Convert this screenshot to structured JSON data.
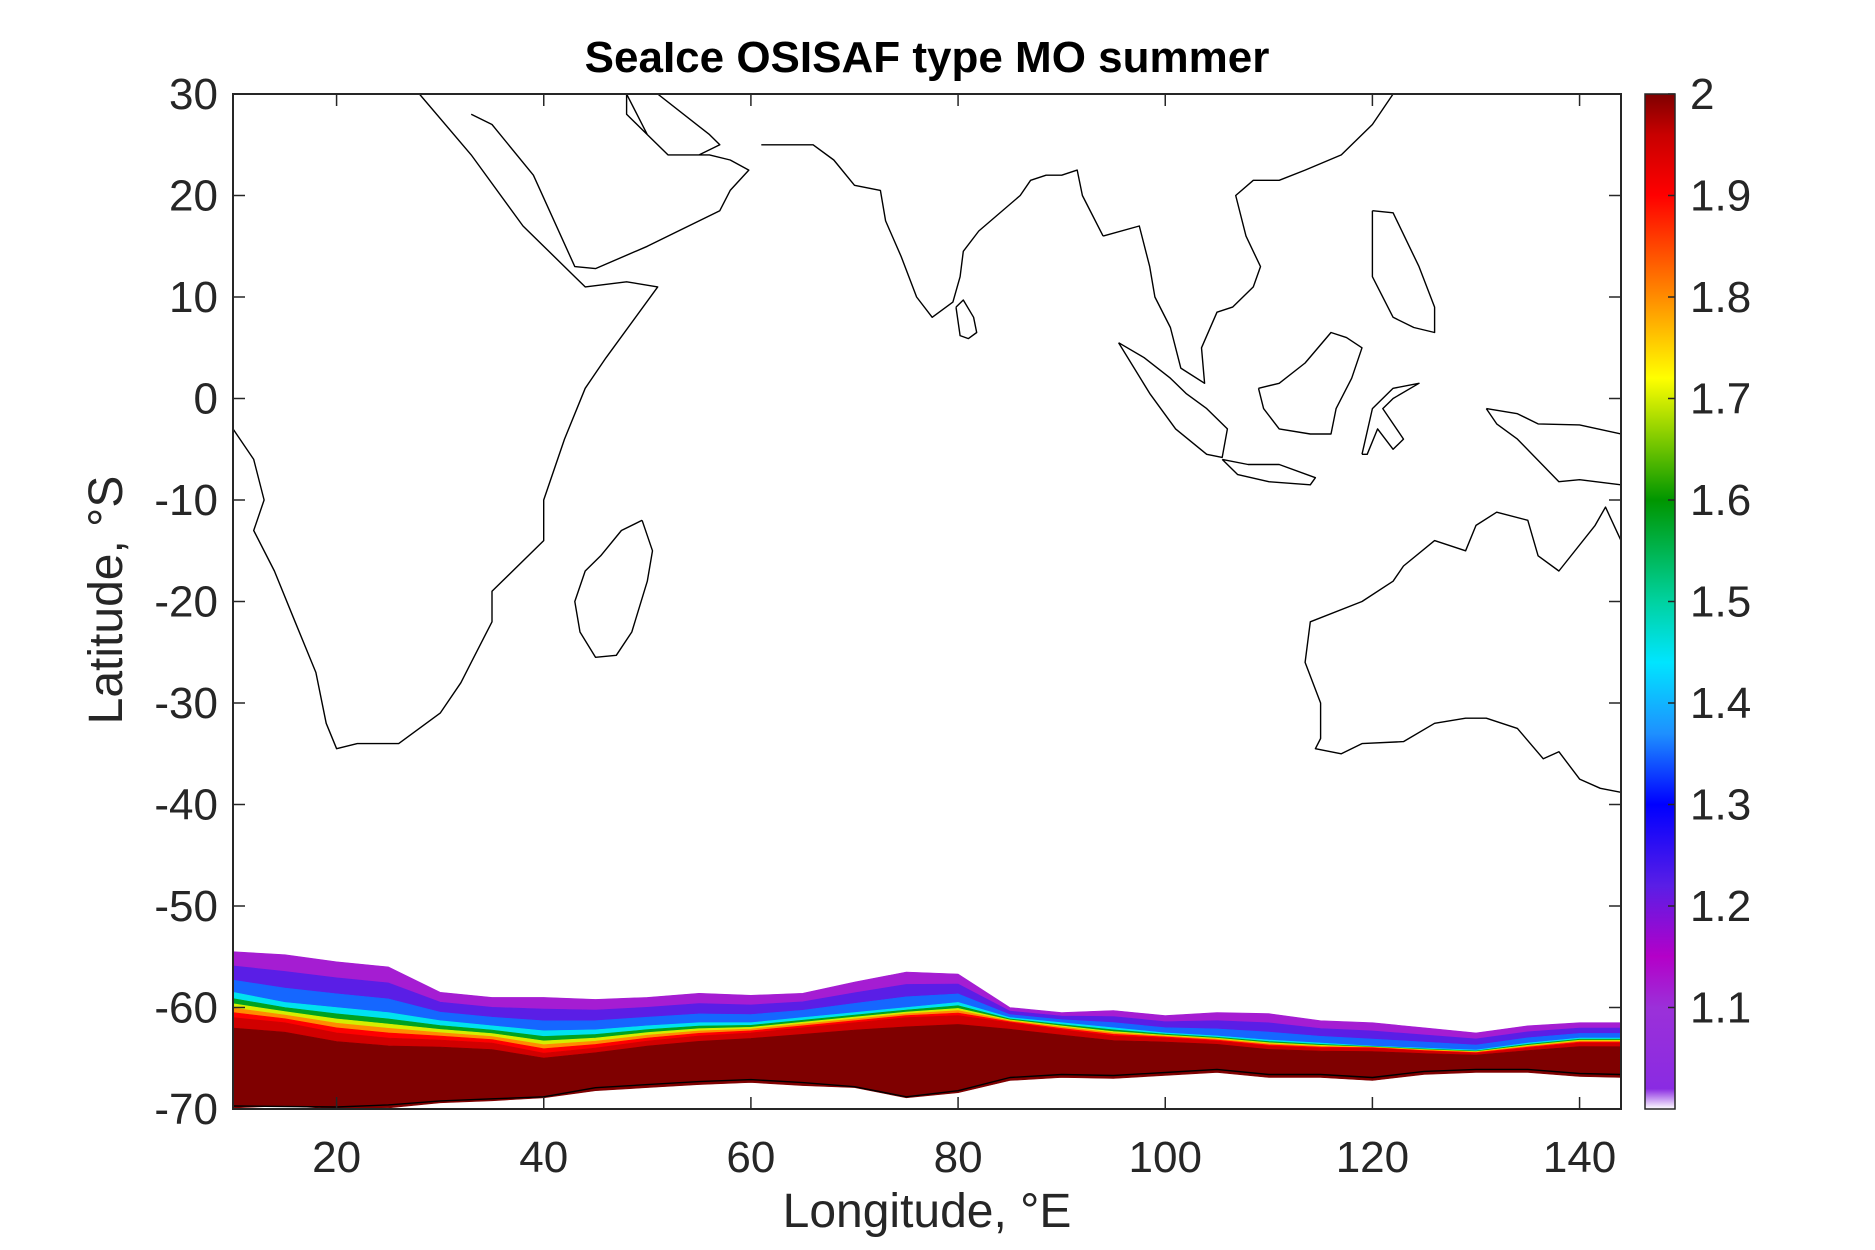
{
  "chart_data": {
    "type": "heatmap",
    "title": "SeaIce OSISAF type MO summer",
    "xlabel": "Longitude, °E",
    "ylabel": "Latitude, °S",
    "xlim": [
      10,
      144
    ],
    "ylim": [
      -70,
      30
    ],
    "xticks": [
      20,
      40,
      60,
      80,
      100,
      120,
      140
    ],
    "yticks": [
      30,
      20,
      10,
      0,
      -10,
      -20,
      -30,
      -40,
      -50,
      -60,
      -70
    ],
    "colorbar": {
      "range": [
        1.02,
        2.0
      ],
      "ticks": [
        "2",
        "1.9",
        "1.8",
        "1.7",
        "1.6",
        "1.5",
        "1.4",
        "1.3",
        "1.2",
        "1.1"
      ],
      "tick_values": [
        2.0,
        1.9,
        1.8,
        1.7,
        1.6,
        1.5,
        1.4,
        1.3,
        1.2,
        1.1
      ],
      "colormap_stops": [
        {
          "value": 1.0,
          "color": "#ffffff"
        },
        {
          "value": 1.02,
          "color": "#8a2be2"
        },
        {
          "value": 1.1,
          "color": "#9b30d9"
        },
        {
          "value": 1.15,
          "color": "#b400c8"
        },
        {
          "value": 1.22,
          "color": "#5a1ee6"
        },
        {
          "value": 1.3,
          "color": "#0000ff"
        },
        {
          "value": 1.37,
          "color": "#1e90ff"
        },
        {
          "value": 1.44,
          "color": "#00e5ff"
        },
        {
          "value": 1.5,
          "color": "#00d2a0"
        },
        {
          "value": 1.6,
          "color": "#009600"
        },
        {
          "value": 1.68,
          "color": "#aadc00"
        },
        {
          "value": 1.72,
          "color": "#ffff00"
        },
        {
          "value": 1.8,
          "color": "#ff8c00"
        },
        {
          "value": 1.9,
          "color": "#ff0000"
        },
        {
          "value": 1.96,
          "color": "#c80000"
        },
        {
          "value": 2.0,
          "color": "#7f0000"
        }
      ]
    },
    "ice_band": {
      "description_values": "approximate field boundaries by longitude (deg E)",
      "lon": [
        10,
        15,
        20,
        25,
        30,
        35,
        40,
        45,
        50,
        55,
        60,
        65,
        70,
        75,
        80,
        85,
        90,
        95,
        100,
        105,
        110,
        115,
        120,
        125,
        130,
        135,
        140,
        144
      ],
      "lat_edge": [
        -54.5,
        -54.8,
        -55.5,
        -56.0,
        -58.5,
        -59.0,
        -59.0,
        -59.2,
        -59.0,
        -58.6,
        -58.8,
        -58.6,
        -57.5,
        -56.5,
        -56.7,
        -60.0,
        -60.5,
        -60.3,
        -60.8,
        -60.5,
        -60.6,
        -61.3,
        -61.5,
        -62.0,
        -62.5,
        -61.8,
        -61.5,
        -61.5
      ],
      "lat_mid": [
        -58.5,
        -59.5,
        -60.0,
        -60.5,
        -61.3,
        -61.8,
        -62.3,
        -62.2,
        -61.8,
        -61.5,
        -61.5,
        -61.0,
        -60.5,
        -60.0,
        -59.5,
        -61.0,
        -61.5,
        -62.0,
        -62.5,
        -62.8,
        -63.2,
        -63.5,
        -63.8,
        -64.0,
        -64.2,
        -63.5,
        -63.0,
        -63.0
      ],
      "lat_core": [
        -61.0,
        -61.5,
        -62.5,
        -63.0,
        -63.2,
        -63.5,
        -64.5,
        -64.0,
        -63.3,
        -62.8,
        -62.5,
        -62.0,
        -61.5,
        -61.0,
        -60.8,
        -61.5,
        -62.2,
        -62.8,
        -63.0,
        -63.3,
        -63.8,
        -64.0,
        -64.0,
        -64.3,
        -64.5,
        -64.0,
        -63.5,
        -63.5
      ],
      "lat_coast": [
        -69.5,
        -69.3,
        -69.6,
        -69.5,
        -69.0,
        -68.8,
        -68.5,
        -67.8,
        -67.5,
        -67.2,
        -67.0,
        -67.3,
        -67.5,
        -68.5,
        -68.0,
        -66.8,
        -66.5,
        -66.6,
        -66.3,
        -66.0,
        -66.5,
        -66.5,
        -66.8,
        -66.2,
        -66.0,
        -66.0,
        -66.4,
        -66.5
      ]
    },
    "coastlines": [
      {
        "name": "africa",
        "lon": [
          10,
          12,
          13,
          12,
          14,
          16,
          18,
          19,
          20,
          22,
          26,
          30,
          32,
          33,
          35,
          35,
          40,
          40,
          42,
          44,
          46,
          51,
          48,
          44,
          43,
          38,
          33,
          28,
          23,
          20,
          18,
          17,
          15,
          13.5,
          12
        ],
        "lat": [
          -3,
          -6,
          -10,
          -13,
          -17,
          -22,
          -27,
          -32,
          -34.5,
          -34,
          -34,
          -31,
          -28,
          -26,
          -22,
          -19,
          -14,
          -10,
          -4,
          1,
          4,
          11,
          11.5,
          11,
          12,
          17,
          24,
          30,
          30,
          30,
          30,
          30,
          30,
          30,
          30
        ]
      },
      {
        "name": "madagascar",
        "lon": [
          49.5,
          50.5,
          50,
          48.5,
          47,
          45,
          43.5,
          43,
          44,
          45.5,
          47.5,
          49.5
        ],
        "lat": [
          -12,
          -15,
          -18,
          -23,
          -25.3,
          -25.5,
          -23,
          -20,
          -17,
          -15.5,
          -13,
          -12
        ]
      },
      {
        "name": "arabia",
        "lon": [
          33,
          35,
          39,
          43,
          45,
          50,
          53,
          57,
          58,
          59.8,
          58,
          56,
          52,
          50,
          48,
          48,
          50,
          51,
          56,
          57,
          55,
          52,
          50,
          48
        ],
        "lat": [
          28,
          27,
          22,
          13,
          12.8,
          15,
          16.5,
          18.5,
          20.5,
          22.5,
          23.5,
          24,
          24,
          26,
          28,
          30,
          30,
          30,
          26,
          25,
          24,
          24,
          26,
          30
        ]
      },
      {
        "name": "india",
        "lon": [
          61,
          66,
          68,
          70,
          72.5,
          73,
          74.5,
          76,
          77.5,
          79.5,
          80.2,
          80.5,
          82,
          86,
          87,
          88.5,
          90,
          91.5,
          92,
          94
        ],
        "lat": [
          25,
          25,
          23.5,
          21,
          20.5,
          17.5,
          14,
          10,
          8,
          9.5,
          12,
          14.5,
          16.5,
          20,
          21.5,
          22,
          22,
          22.5,
          20,
          16
        ]
      },
      {
        "name": "sri-lanka",
        "lon": [
          79.8,
          80.5,
          81.5,
          81.8,
          81,
          80.2,
          79.8
        ],
        "lat": [
          9,
          9.7,
          8,
          6.5,
          5.9,
          6.2,
          9
        ]
      },
      {
        "name": "se-asia",
        "lon": [
          94,
          97.5,
          98.5,
          99,
          100.5,
          101.5,
          103.8,
          103.5,
          105,
          106.5,
          108.5,
          109.2,
          107.8,
          106.8,
          108.5,
          111,
          113.5,
          117,
          120,
          122,
          122,
          121
        ],
        "lat": [
          16,
          17,
          13,
          10,
          7,
          3,
          1.5,
          5,
          8.5,
          9,
          11,
          13,
          16,
          20,
          21.5,
          21.5,
          22.5,
          24,
          27,
          30,
          30,
          30
        ]
      },
      {
        "name": "sumatra",
        "lon": [
          95.5,
          98,
          100.5,
          102,
          104,
          106,
          105.5,
          104,
          101,
          98.5,
          95.5
        ],
        "lat": [
          5.5,
          4,
          2,
          0.5,
          -1,
          -3,
          -5.8,
          -5.5,
          -3,
          0.5,
          5.5
        ]
      },
      {
        "name": "java",
        "lon": [
          105.5,
          108,
          111,
          114.5,
          114,
          110,
          107,
          105.5
        ],
        "lat": [
          -6,
          -6.5,
          -6.5,
          -7.8,
          -8.5,
          -8.2,
          -7.5,
          -6
        ]
      },
      {
        "name": "borneo",
        "lon": [
          109,
          111,
          113.5,
          116,
          117.5,
          119,
          118,
          116.5,
          116,
          114,
          111,
          109.5,
          109
        ],
        "lat": [
          1,
          1.5,
          3.5,
          6.5,
          6,
          5,
          2,
          -1,
          -3.5,
          -3.5,
          -3,
          -1,
          1
        ]
      },
      {
        "name": "sulawesi",
        "lon": [
          119,
          120,
          122,
          124.5,
          122,
          121,
          123,
          122,
          120.5,
          119.5,
          119
        ],
        "lat": [
          -5.5,
          -1,
          1,
          1.5,
          0,
          -1,
          -4,
          -5,
          -3,
          -5.5,
          -5.5
        ]
      },
      {
        "name": "new-guinea",
        "lon": [
          131,
          134,
          136,
          140,
          144,
          144,
          140,
          138,
          134,
          132,
          131
        ],
        "lat": [
          -1,
          -1.5,
          -2.5,
          -2.6,
          -3.5,
          -8.5,
          -8,
          -8.2,
          -4,
          -2.5,
          -1
        ]
      },
      {
        "name": "philippines",
        "lon": [
          120,
          122,
          124.5,
          126,
          126,
          124,
          122,
          120,
          120
        ],
        "lat": [
          18.5,
          18.3,
          13,
          9,
          6.5,
          7,
          8,
          12,
          18.5
        ]
      },
      {
        "name": "australia",
        "lon": [
          144,
          142.5,
          141.5,
          138,
          136,
          135,
          132,
          130,
          129,
          126,
          123,
          122,
          119,
          114,
          113.5,
          115,
          115,
          114.5,
          117,
          119,
          123,
          126,
          129,
          131,
          134,
          136.5,
          138,
          140,
          142,
          144
        ],
        "lat": [
          -14,
          -10.7,
          -12.5,
          -17,
          -15.5,
          -12,
          -11.2,
          -12.5,
          -15,
          -14,
          -16.5,
          -18,
          -20,
          -22,
          -26,
          -30,
          -33.5,
          -34.5,
          -35,
          -34,
          -33.8,
          -32,
          -31.5,
          -31.5,
          -32.5,
          -35.5,
          -34.8,
          -37.5,
          -38.4,
          -38.8
        ]
      },
      {
        "name": "antarctica",
        "lon": [
          10,
          20,
          25,
          30,
          35,
          40,
          45,
          50,
          55,
          60,
          65,
          70,
          75,
          80,
          85,
          90,
          95,
          100,
          105,
          110,
          115,
          120,
          125,
          130,
          135,
          140,
          144
        ],
        "lat": [
          -69.7,
          -69.8,
          -69.6,
          -69.2,
          -69.0,
          -68.8,
          -67.9,
          -67.6,
          -67.3,
          -67.1,
          -67.4,
          -67.8,
          -68.8,
          -68.2,
          -66.9,
          -66.6,
          -66.7,
          -66.4,
          -66.1,
          -66.6,
          -66.6,
          -66.9,
          -66.3,
          -66.1,
          -66.1,
          -66.5,
          -66.6
        ]
      }
    ]
  }
}
